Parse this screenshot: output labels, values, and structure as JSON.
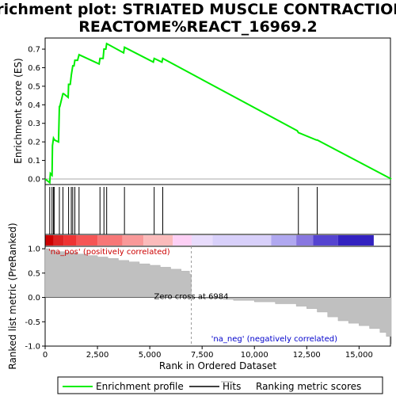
{
  "chart_data": {
    "type": "line",
    "title_line1": "Enrichment plot: STRIATED MUSCLE CONTRACTION%",
    "title_line2": "REACTOME%REACT_16969.2",
    "top_ylabel": "Enrichment score (ES)",
    "bottom_ylabel": "Ranked list metric (PreRanked)",
    "xlabel": "Rank in Ordered Dataset",
    "xlim": [
      0,
      16500
    ],
    "es_ylim": [
      -0.03,
      0.76
    ],
    "metric_ylim": [
      -1.0,
      1.05
    ],
    "x_ticks": [
      "0",
      "2,500",
      "5,000",
      "7,500",
      "10,000",
      "12,500",
      "15,000"
    ],
    "x_tick_values": [
      0,
      2500,
      5000,
      7500,
      10000,
      12500,
      15000
    ],
    "es_ticks": [
      "0.0",
      "0.1",
      "0.2",
      "0.3",
      "0.4",
      "0.5",
      "0.6",
      "0.7"
    ],
    "es_tick_values": [
      0.0,
      0.1,
      0.2,
      0.3,
      0.4,
      0.5,
      0.6,
      0.7
    ],
    "metric_ticks": [
      "1.0",
      "0.5",
      "0.0",
      "-0.5",
      "-1.0"
    ],
    "metric_tick_values": [
      1.0,
      0.5,
      0.0,
      -0.5,
      -1.0
    ],
    "series": [
      {
        "name": "Enrichment profile",
        "color": "#00ee00",
        "x": [
          0,
          220,
          250,
          330,
          350,
          400,
          450,
          640,
          680,
          700,
          850,
          880,
          1100,
          1120,
          1200,
          1250,
          1320,
          1380,
          1420,
          1550,
          1620,
          2580,
          2620,
          2770,
          2810,
          2900,
          2940,
          3750,
          3790,
          5170,
          5210,
          5580,
          5620,
          12050,
          12100,
          12960,
          13000,
          16540
        ],
        "y": [
          0.0,
          -0.02,
          0.03,
          0.02,
          0.18,
          0.22,
          0.21,
          0.2,
          0.39,
          0.39,
          0.46,
          0.46,
          0.44,
          0.51,
          0.51,
          0.56,
          0.61,
          0.61,
          0.64,
          0.64,
          0.67,
          0.62,
          0.65,
          0.65,
          0.7,
          0.7,
          0.73,
          0.68,
          0.71,
          0.63,
          0.65,
          0.63,
          0.65,
          0.26,
          0.25,
          0.21,
          0.21,
          0.0
        ]
      }
    ],
    "hits": [
      220,
      330,
      400,
      430,
      680,
      850,
      1120,
      1250,
      1320,
      1420,
      1620,
      2620,
      2810,
      2940,
      3790,
      5210,
      5620,
      12100,
      13000
    ],
    "metric_profile": {
      "x": [
        0,
        200,
        500,
        1000,
        1500,
        2000,
        2500,
        3000,
        3500,
        4000,
        4500,
        5000,
        5500,
        6000,
        6500,
        6900,
        6984,
        7500,
        8500,
        9000,
        10000,
        11000,
        12000,
        12500,
        13000,
        13500,
        14000,
        14500,
        15000,
        15500,
        16000,
        16300,
        16540
      ],
      "y": [
        1.0,
        0.97,
        0.94,
        0.92,
        0.89,
        0.86,
        0.83,
        0.8,
        0.76,
        0.73,
        0.69,
        0.66,
        0.62,
        0.58,
        0.54,
        0.48,
        0.0,
        -0.02,
        -0.04,
        -0.06,
        -0.09,
        -0.13,
        -0.18,
        -0.23,
        -0.3,
        -0.4,
        -0.48,
        -0.53,
        -0.58,
        -0.64,
        -0.72,
        -0.8,
        -0.96
      ]
    },
    "zero_cross": 6984,
    "zero_cross_label": "Zero cross at 6984",
    "pos_label": "'na_pos' (positively correlated)",
    "neg_label": "'na_neg' (negatively correlated)",
    "legend": [
      {
        "label": "Enrichment profile",
        "color": "#00ee00"
      },
      {
        "label": "Hits",
        "color": "#000000"
      },
      {
        "label": "Ranking metric scores",
        "color": "#c0c0c0"
      }
    ],
    "heatmap_colors": [
      "#cc0000",
      "#dd2222",
      "#ee3333",
      "#f55555",
      "#f77777",
      "#f99999",
      "#fbbbbb",
      "#fdd0f5",
      "#e8dcfc",
      "#d8d0fa",
      "#b0a8f0",
      "#8877e0",
      "#5544d0",
      "#3322c0",
      "#1a10b8",
      "#5510aa"
    ],
    "heatmap_stops": [
      0,
      400,
      900,
      1500,
      2500,
      3700,
      4700,
      6100,
      7000,
      8000,
      10800,
      12000,
      12800,
      14000,
      15700,
      16540
    ]
  }
}
